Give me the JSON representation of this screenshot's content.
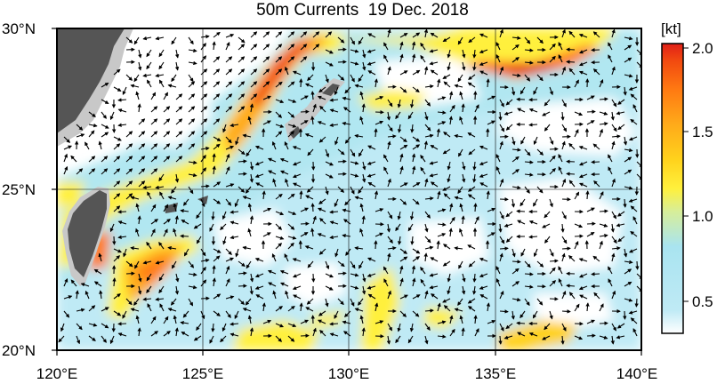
{
  "title": "50m Currents  19 Dec. 2018",
  "map": {
    "lat_labels": [
      "30°N",
      "25°N",
      "20°N"
    ],
    "lon_labels": [
      "120°E",
      "125°E",
      "130°E",
      "135°E",
      "140°E"
    ],
    "lat_range": [
      20,
      30
    ],
    "lon_range": [
      120,
      140
    ],
    "grid": true
  },
  "colorbar": {
    "unit": "[kt]",
    "ticks": [
      "2.0",
      "1.5",
      "1.0",
      "0.5"
    ],
    "min": 0.3,
    "max": 2.0,
    "colors": [
      "#ffffff",
      "#bfeaf5",
      "#a9e4f0",
      "#d7ee9a",
      "#fff03c",
      "#ffd21c",
      "#ffab1a",
      "#ff7a12",
      "#f24a10",
      "#e02018"
    ]
  },
  "colors": {
    "land": "#555555",
    "shelf": "#c8c8c8",
    "arrow": "#000000"
  }
}
